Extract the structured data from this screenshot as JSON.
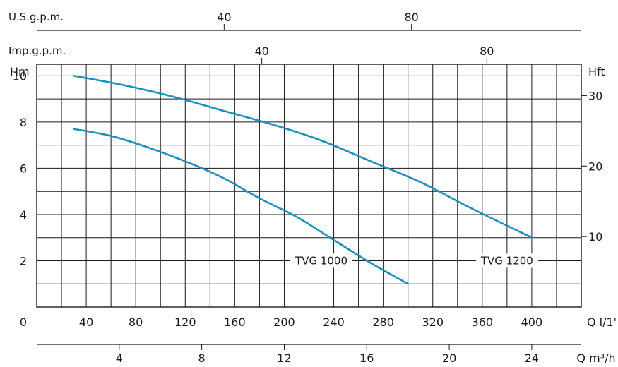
{
  "chart_data": {
    "type": "line",
    "colors": {
      "curve": "#1f8fb6",
      "grid": "#1a1a1a",
      "background": "#ffffff"
    },
    "top_axes": [
      {
        "label": "U.S.g.p.m.",
        "ticks": [
          40,
          80
        ]
      },
      {
        "label": "Imp.g.p.m.",
        "ticks": [
          40,
          80
        ]
      }
    ],
    "left_axis": {
      "label": "Hm",
      "ticks": [
        0,
        2,
        4,
        6,
        8,
        10
      ],
      "range": [
        0,
        10.5
      ]
    },
    "right_axis": {
      "label": "Hft",
      "ticks": [
        10,
        20,
        30
      ]
    },
    "x_axis": {
      "label": "Q l/1'",
      "ticks": [
        40,
        80,
        120,
        160,
        200,
        240,
        280,
        320,
        360,
        400
      ],
      "range": [
        0,
        440
      ]
    },
    "bottom_axis": {
      "label": "Q m³/h",
      "ticks": [
        4,
        8,
        12,
        16,
        20,
        24
      ]
    },
    "grid": true,
    "series": [
      {
        "name": "TVG 1000",
        "x": [
          30,
          60,
          90,
          120,
          150,
          180,
          210,
          240,
          270,
          300
        ],
        "y": [
          7.7,
          7.4,
          6.9,
          6.3,
          5.6,
          4.7,
          3.9,
          2.9,
          1.9,
          1.0
        ]
      },
      {
        "name": "TVG 1200",
        "x": [
          30,
          70,
          110,
          150,
          190,
          230,
          270,
          310,
          350,
          400
        ],
        "y": [
          10.0,
          9.6,
          9.1,
          8.5,
          7.9,
          7.2,
          6.3,
          5.4,
          4.3,
          3.0
        ]
      }
    ]
  }
}
